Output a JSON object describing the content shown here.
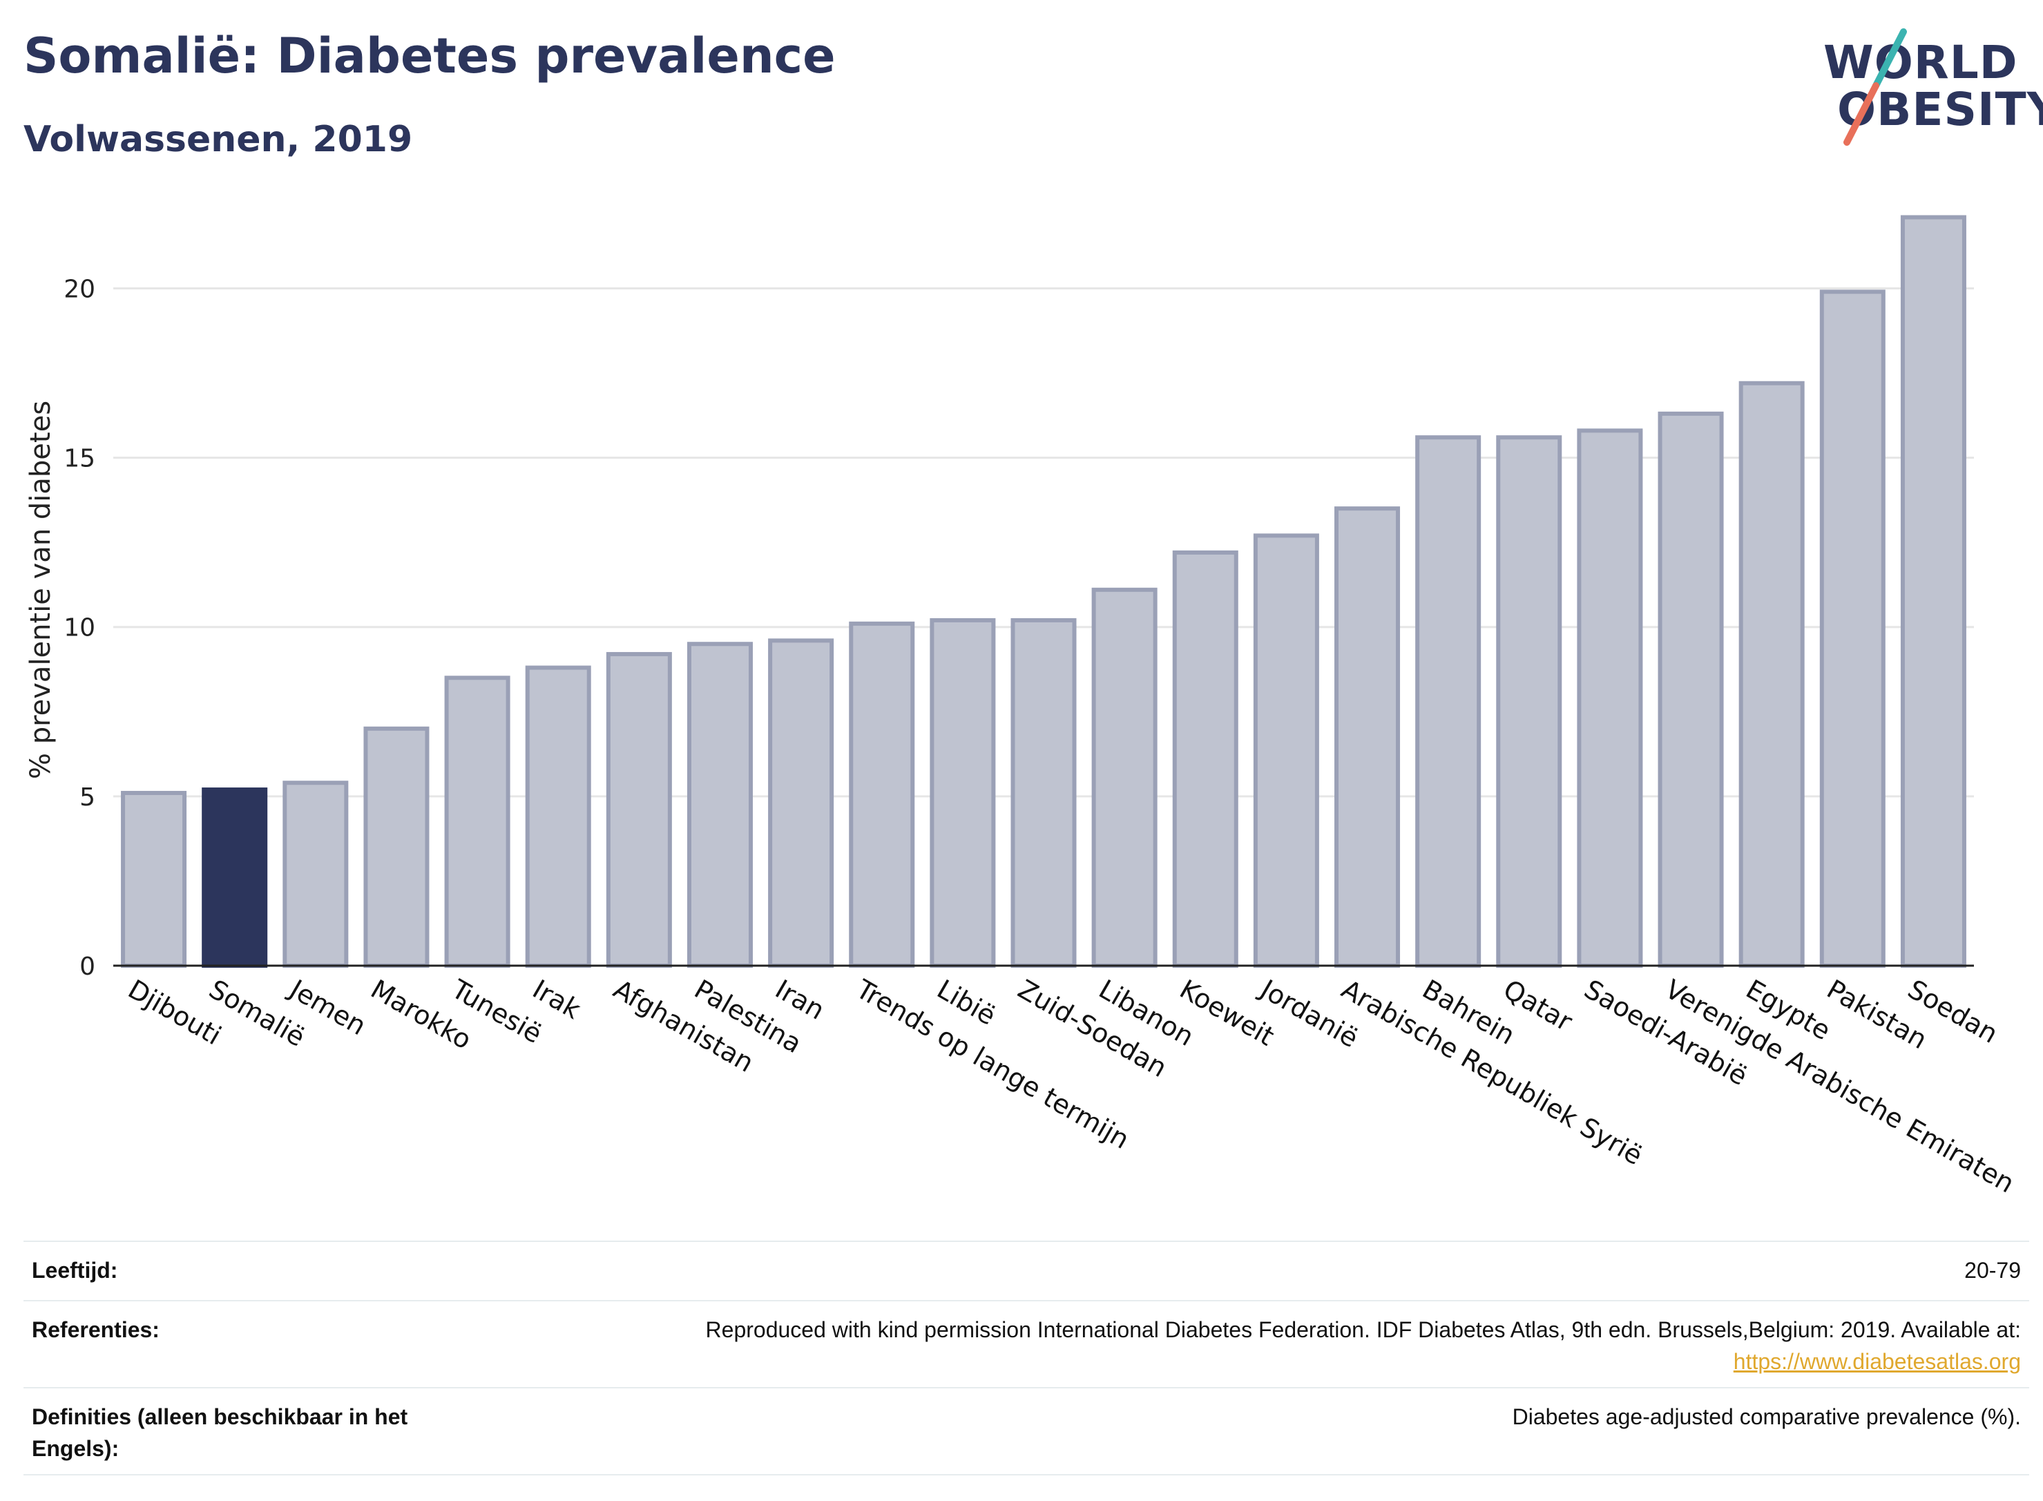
{
  "header": {
    "title": "Somalië: Diabetes prevalence",
    "subtitle": "Volwassenen, 2019"
  },
  "logo": {
    "line1": "WORLD",
    "line2": "OBESITY",
    "colors": {
      "text": "#2c355c",
      "slash_top": "#3bb3b0",
      "slash_bottom": "#e8705a"
    }
  },
  "colors": {
    "bar": "#2c355c",
    "bar_other_fill": "#bfc3d0",
    "bar_other_stroke": "#9aa0b6",
    "grid": "#e6e6e6",
    "axis": "#222222"
  },
  "chart_data": {
    "type": "bar",
    "highlight": "Somalië",
    "ylabel": "% prevalentie van diabetes",
    "ylim": [
      0,
      22.6
    ],
    "yticks": [
      0,
      5,
      10,
      15,
      20
    ],
    "grid": true,
    "categories": [
      "Djibouti",
      "Somalië",
      "Jemen",
      "Marokko",
      "Tunesië",
      "Irak",
      "Afghanistan",
      "Palestina",
      "Iran",
      "Trends op lange termijn",
      "Libië",
      "Zuid-Soedan",
      "Libanon",
      "Koeweit",
      "Jordanië",
      "Arabische Republiek Syrië",
      "Bahrein",
      "Qatar",
      "Saoedi-Arabië",
      "Verenigde Arabische Emiraten",
      "Egypte",
      "Pakistan",
      "Soedan"
    ],
    "values": [
      5.1,
      5.2,
      5.4,
      7.0,
      8.5,
      8.8,
      9.2,
      9.5,
      9.6,
      10.1,
      10.2,
      10.2,
      11.1,
      12.2,
      12.7,
      13.5,
      15.6,
      15.6,
      15.8,
      16.3,
      17.2,
      19.9,
      22.1
    ]
  },
  "footer": {
    "rows": [
      {
        "label": "Leeftijd:",
        "value": "20-79"
      },
      {
        "label": "Referenties:",
        "value": "Reproduced with kind permission International Diabetes Federation. IDF Diabetes Atlas, 9th edn. Brussels,Belgium: 2019. Available at:",
        "link": "https://www.diabetesatlas.org"
      },
      {
        "label": "Definities (alleen beschikbaar in het Engels):",
        "value": "Diabetes age-adjusted comparative prevalence (%)."
      }
    ]
  }
}
